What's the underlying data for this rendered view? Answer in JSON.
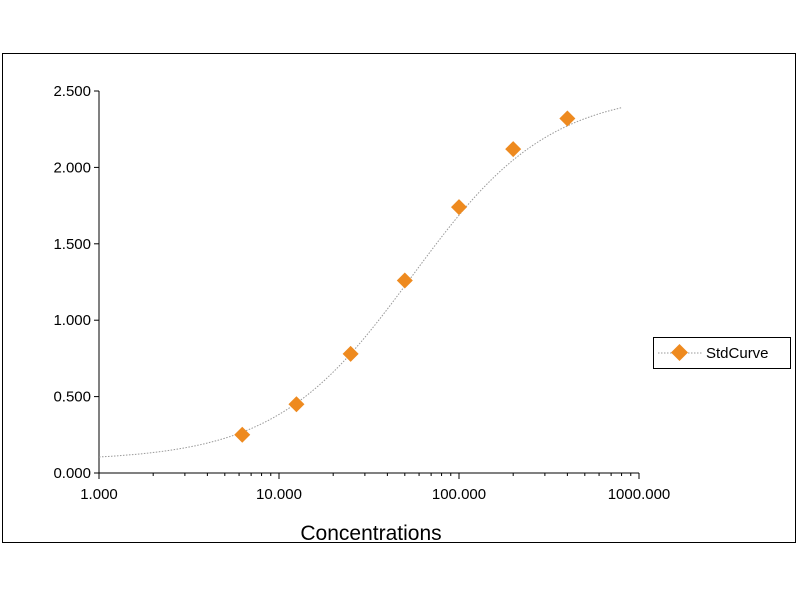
{
  "chart_data": {
    "type": "scatter",
    "title": "",
    "xlabel": "Concentrations",
    "ylabel": "",
    "x_scale": "log",
    "xlim": [
      1,
      1000
    ],
    "ylim": [
      0,
      2.5
    ],
    "x_ticks": [
      "1.000",
      "10.000",
      "100.000",
      "1000.000"
    ],
    "y_ticks": [
      "0.000",
      "0.500",
      "1.000",
      "1.500",
      "2.000",
      "2.500"
    ],
    "grid": false,
    "legend_position": "right",
    "series": [
      {
        "name": "StdCurve",
        "marker": "diamond",
        "color": "#ee8a1f",
        "x": [
          6.25,
          12.5,
          25,
          50,
          100,
          200,
          400
        ],
        "y": [
          0.25,
          0.45,
          0.78,
          1.26,
          1.74,
          2.12,
          2.32
        ],
        "fit_curve": {
          "model": "4PL",
          "bottom": 0.08,
          "top": 2.5,
          "ec50": 55,
          "hill": 1.14,
          "x_range": [
            1,
            800
          ],
          "color": "#999999"
        }
      }
    ]
  }
}
